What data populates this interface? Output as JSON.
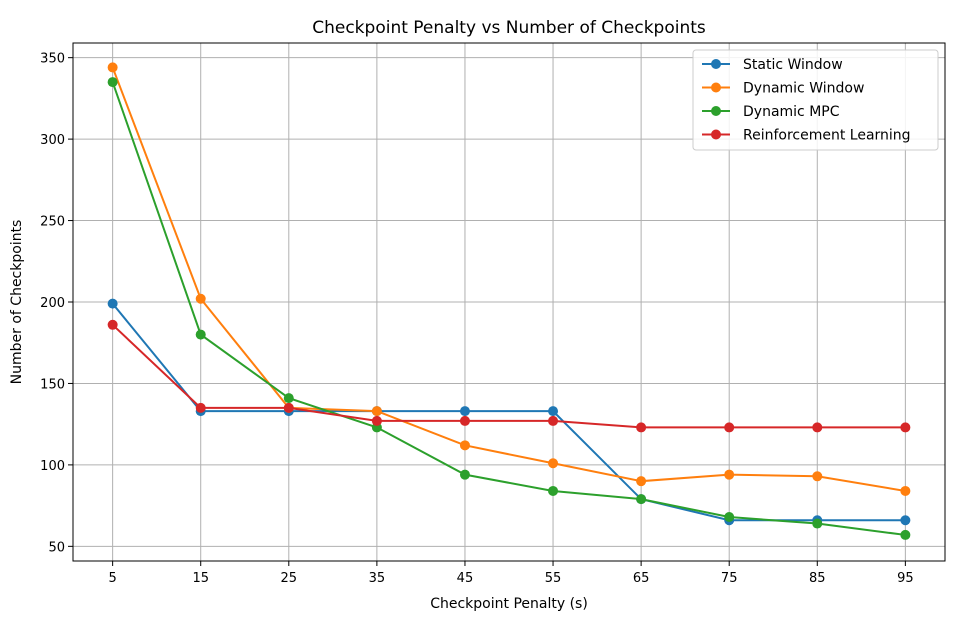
{
  "chart_data": {
    "type": "line",
    "title": "Checkpoint Penalty vs Number of Checkpoints",
    "xlabel": "Checkpoint Penalty (s)",
    "ylabel": "Number of Checkpoints",
    "x": [
      5,
      15,
      25,
      35,
      45,
      55,
      65,
      75,
      85,
      95
    ],
    "x_tick_labels": [
      "5",
      "15",
      "25",
      "35",
      "45",
      "55",
      "65",
      "75",
      "85",
      "95"
    ],
    "y_ticks": [
      50,
      100,
      150,
      200,
      250,
      300,
      350
    ],
    "y_tick_labels": [
      "50",
      "100",
      "150",
      "200",
      "250",
      "300",
      "350"
    ],
    "xlim": [
      0.5,
      99.5
    ],
    "ylim": [
      41,
      359
    ],
    "grid": true,
    "legend_position": "top-right",
    "series": [
      {
        "name": "Static Window",
        "color": "#1f77b4",
        "values": [
          199,
          133,
          133,
          133,
          133,
          133,
          79,
          66,
          66,
          66
        ]
      },
      {
        "name": "Dynamic Window",
        "color": "#ff7f0e",
        "values": [
          344,
          202,
          135,
          133,
          112,
          101,
          90,
          94,
          93,
          84
        ]
      },
      {
        "name": "Dynamic MPC",
        "color": "#2ca02c",
        "values": [
          335,
          180,
          141,
          123,
          94,
          84,
          79,
          68,
          64,
          57
        ]
      },
      {
        "name": "Reinforcement Learning",
        "color": "#d62728",
        "values": [
          186,
          135,
          135,
          127,
          127,
          127,
          123,
          123,
          123,
          123
        ]
      }
    ]
  }
}
